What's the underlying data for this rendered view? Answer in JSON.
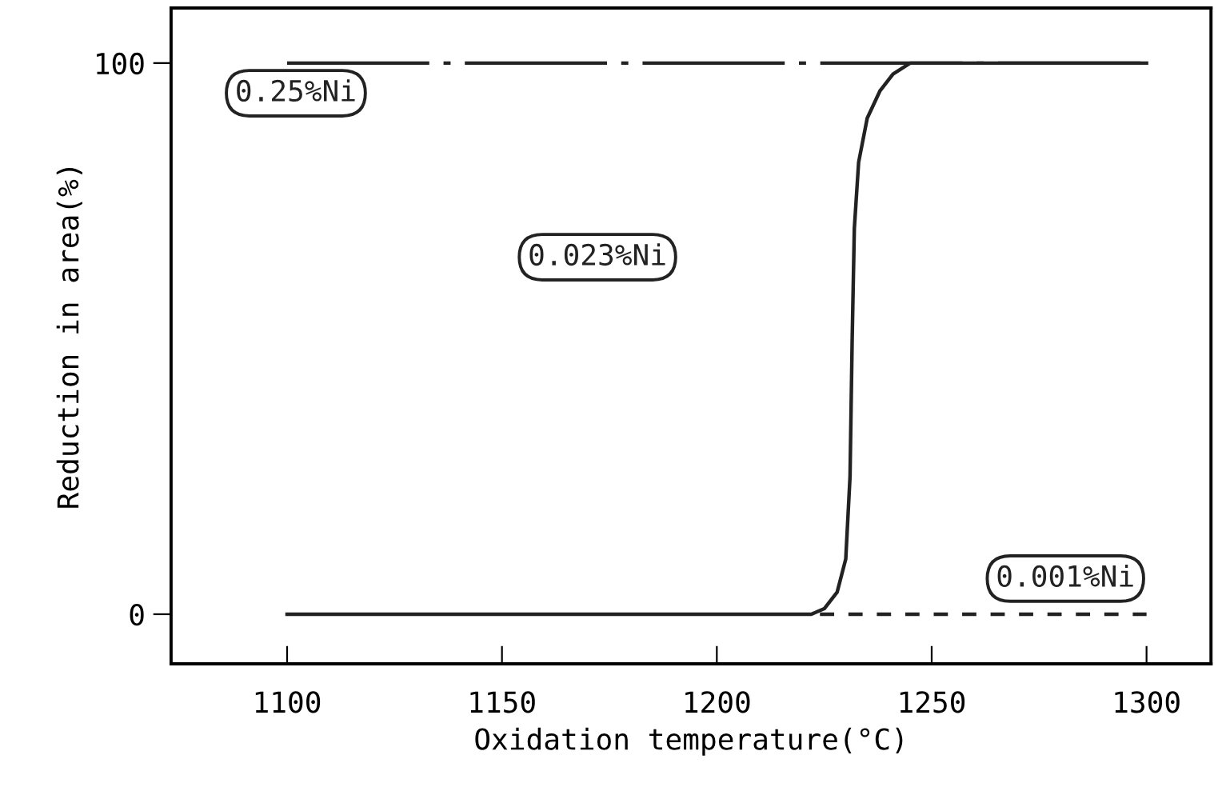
{
  "chart_data": {
    "type": "line",
    "xlabel": "Oxidation temperature(°C)",
    "ylabel": "Reduction in area(%)",
    "xlim": [
      1073,
      1315
    ],
    "xticks": [
      1100,
      1150,
      1200,
      1250,
      1300
    ],
    "ylim": [
      -9,
      110
    ],
    "yticks": [
      0,
      100
    ],
    "grid": false,
    "legend": false,
    "marker": "none",
    "series": [
      {
        "name": "0.25%Ni",
        "color": "#222222",
        "line_style": "dashdot",
        "x": [
          1100,
          1300
        ],
        "values": [
          100,
          100
        ]
      },
      {
        "name": "0.023%Ni",
        "color": "#222222",
        "line_style": "solid",
        "x": [
          1100,
          1222,
          1225,
          1228,
          1230,
          1231,
          1231.5,
          1232,
          1233,
          1235,
          1238,
          1241,
          1245,
          1300
        ],
        "values": [
          0,
          0,
          1,
          4,
          10,
          25,
          50,
          70,
          82,
          90,
          95,
          98,
          100,
          100
        ]
      },
      {
        "name": "0.001%Ni",
        "color": "#222222",
        "line_style": "dashed",
        "x": [
          1224,
          1300
        ],
        "values": [
          0,
          0
        ]
      }
    ]
  }
}
